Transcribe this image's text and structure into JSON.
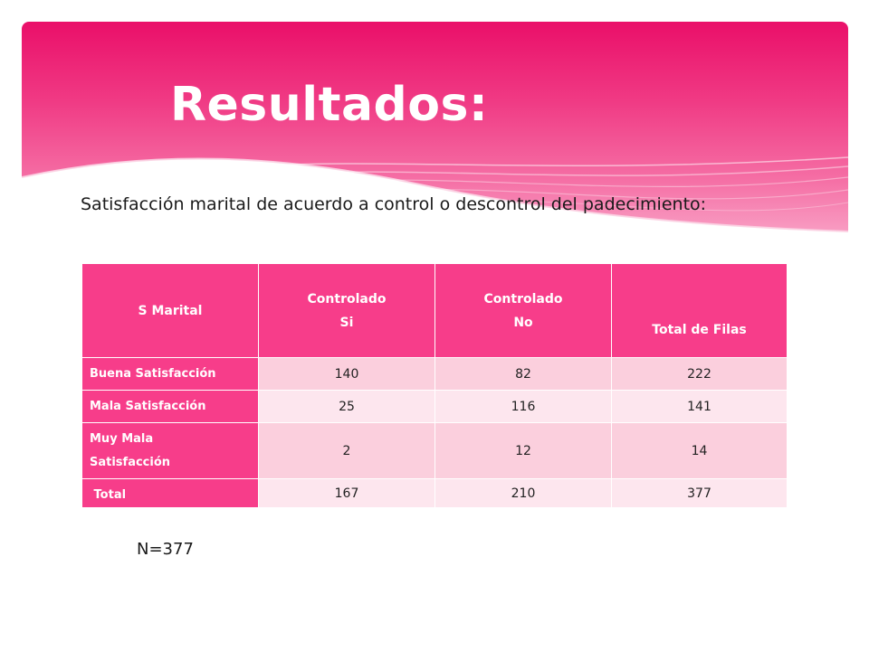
{
  "slide": {
    "title": "Resultados:",
    "subtitle": "Satisfacción marital de acuerdo a control o descontrol del padecimiento:",
    "sample_size": "N=377"
  },
  "colors": {
    "banner_top": "#ea0f69",
    "banner_bottom": "#f9aacb",
    "header_cell": "#f73d8a",
    "row_dark": "#fbcfdd",
    "row_light": "#fde6ee"
  },
  "table": {
    "headers": [
      [
        "S Marital"
      ],
      [
        "Controlado",
        "Si"
      ],
      [
        "Controlado",
        "No"
      ],
      [
        "Total de Filas"
      ]
    ],
    "rows": [
      {
        "label": [
          "Buena Satisfacción"
        ],
        "values": [
          "140",
          "82",
          "222"
        ]
      },
      {
        "label": [
          "Mala Satisfacción"
        ],
        "values": [
          "25",
          "116",
          "141"
        ]
      },
      {
        "label": [
          "Muy Mala",
          "Satisfacción"
        ],
        "values": [
          "2",
          "12",
          "14"
        ]
      },
      {
        "label": [
          " Total"
        ],
        "values": [
          "167",
          "210",
          "377"
        ]
      }
    ]
  }
}
